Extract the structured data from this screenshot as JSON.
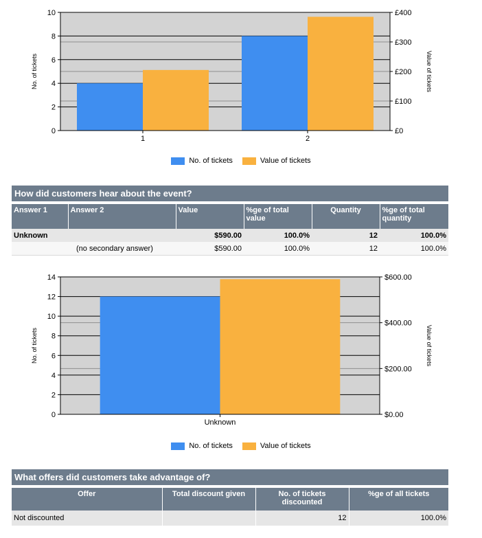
{
  "colors": {
    "tickets": "#3f8ef0",
    "value": "#f9b13f",
    "header": "#6d7c8c",
    "plot_bg": "#d3d3d3"
  },
  "chart_data": [
    {
      "type": "bar",
      "categories": [
        "1",
        "2"
      ],
      "series": [
        {
          "name": "No. of tickets",
          "axis": "left",
          "values": [
            4,
            8
          ]
        },
        {
          "name": "Value of tickets",
          "axis": "right",
          "values": [
            205,
            385
          ]
        }
      ],
      "ylabel": "No. of tickets",
      "ylabel_right": "Value of tickets",
      "ylim": [
        0,
        10
      ],
      "ylim_right": [
        0,
        400
      ],
      "yticks": [
        0,
        2,
        4,
        6,
        8,
        10
      ],
      "yticks_right": [
        0,
        100,
        200,
        300,
        400
      ],
      "ytick_labels_right": [
        "£0",
        "£100",
        "£200",
        "£300",
        "£400"
      ],
      "legend": "bottom-center",
      "grid": true
    },
    {
      "type": "bar",
      "categories": [
        "Unknown"
      ],
      "series": [
        {
          "name": "No. of tickets",
          "axis": "left",
          "values": [
            12
          ]
        },
        {
          "name": "Value of tickets",
          "axis": "right",
          "values": [
            590
          ]
        }
      ],
      "ylabel": "No. of tickets",
      "ylabel_right": "Value of tickets",
      "ylim": [
        0,
        14
      ],
      "ylim_right": [
        0,
        600
      ],
      "yticks": [
        0,
        2,
        4,
        6,
        8,
        10,
        12,
        14
      ],
      "yticks_right": [
        0,
        200,
        400,
        600
      ],
      "ytick_labels_right": [
        "$0.00",
        "$200.00",
        "$400.00",
        "$600.00"
      ],
      "legend": "bottom-center",
      "grid": true
    }
  ],
  "legend": {
    "tickets": "No. of tickets",
    "value": "Value of tickets"
  },
  "hear": {
    "title": "How did customers hear about the event?",
    "headers": {
      "answer1": "Answer 1",
      "answer2": "Answer 2",
      "value": "Value",
      "pct_value": "%ge of total value",
      "quantity": "Quantity",
      "pct_quantity": "%ge of total quantity"
    },
    "rows": [
      {
        "answer1": "Unknown",
        "answer2": "",
        "value": "$590.00",
        "pct_value": "100.0%",
        "quantity": "12",
        "pct_quantity": "100.0%"
      },
      {
        "answer1": "",
        "answer2": "(no secondary answer)",
        "value": "$590.00",
        "pct_value": "100.0%",
        "quantity": "12",
        "pct_quantity": "100.0%"
      }
    ]
  },
  "offers": {
    "title": "What offers did customers take advantage of?",
    "headers": {
      "offer": "Offer",
      "discount": "Total discount given",
      "tickets": "No. of tickets discounted",
      "pct": "%ge of all tickets"
    },
    "rows": [
      {
        "offer": "Not discounted",
        "discount": "",
        "tickets": "12",
        "pct": "100.0%"
      }
    ]
  }
}
